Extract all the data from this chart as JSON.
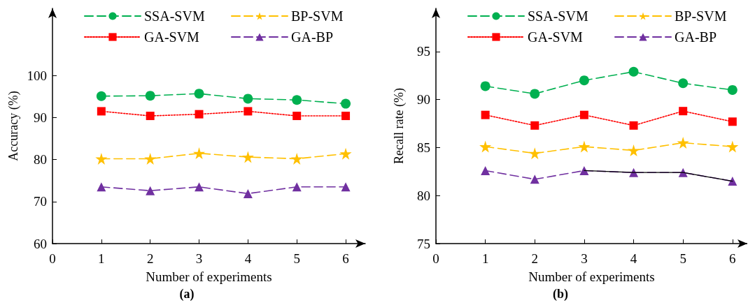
{
  "chart_data": [
    {
      "type": "line",
      "title": "(a)",
      "xlabel": "Number of experiments",
      "ylabel": "Accuracy (%)",
      "x": [
        1,
        2,
        3,
        4,
        5,
        6
      ],
      "xlim": [
        0,
        6.4
      ],
      "xticks": [
        0,
        1,
        2,
        3,
        4,
        5,
        6
      ],
      "ylim": [
        60,
        116
      ],
      "yticks": [
        60,
        70,
        80,
        90,
        100
      ],
      "grid": false,
      "legend": "top",
      "series": [
        {
          "name": "SSA-SVM",
          "color": "#00b050",
          "marker": "circle",
          "line_style": "dashed",
          "values": [
            95.1,
            95.2,
            95.7,
            94.5,
            94.2,
            93.3
          ]
        },
        {
          "name": "GA-SVM",
          "color": "#ff0000",
          "marker": "square",
          "line_style": "dotted",
          "values": [
            91.5,
            90.4,
            90.8,
            91.5,
            90.4,
            90.4
          ]
        },
        {
          "name": "BP-SVM",
          "color": "#ffc000",
          "marker": "star",
          "line_style": "dashed",
          "values": [
            80.2,
            80.2,
            81.5,
            80.6,
            80.2,
            81.4
          ]
        },
        {
          "name": "GA-BP",
          "color": "#7030a0",
          "marker": "triangle",
          "line_style": "dashed",
          "values": [
            73.5,
            72.6,
            73.5,
            71.9,
            73.5,
            73.5
          ]
        }
      ]
    },
    {
      "type": "line",
      "title": "(b)",
      "xlabel": "Number of experiments",
      "ylabel": "Recall rate (%)",
      "x": [
        1,
        2,
        3,
        4,
        5,
        6
      ],
      "xlim": [
        0,
        6.3
      ],
      "xticks": [
        0,
        1,
        2,
        3,
        4,
        5,
        6
      ],
      "ylim": [
        75,
        99.5
      ],
      "yticks": [
        75,
        80,
        85,
        90,
        95
      ],
      "grid": false,
      "legend": "top",
      "series": [
        {
          "name": "SSA-SVM",
          "color": "#00b050",
          "marker": "circle",
          "line_style": "dashed",
          "values": [
            91.4,
            90.6,
            92.0,
            92.9,
            91.7,
            91.0
          ]
        },
        {
          "name": "GA-SVM",
          "color": "#ff0000",
          "marker": "square",
          "line_style": "dotted",
          "values": [
            88.4,
            87.3,
            88.4,
            87.3,
            88.8,
            87.7
          ]
        },
        {
          "name": "BP-SVM",
          "color": "#ffc000",
          "marker": "star",
          "line_style": "dashed",
          "values": [
            85.1,
            84.4,
            85.1,
            84.7,
            85.5,
            85.1
          ]
        },
        {
          "name": "GA-BP",
          "color": "#7030a0",
          "marker": "triangle",
          "line_style": "dashed",
          "values": [
            82.6,
            81.7,
            82.6,
            82.4,
            82.4,
            81.5
          ]
        },
        {
          "color": "#000000",
          "marker": "none",
          "line_style": "solid",
          "values": [
            null,
            null,
            82.6,
            82.4,
            82.4,
            81.5
          ]
        }
      ]
    }
  ]
}
